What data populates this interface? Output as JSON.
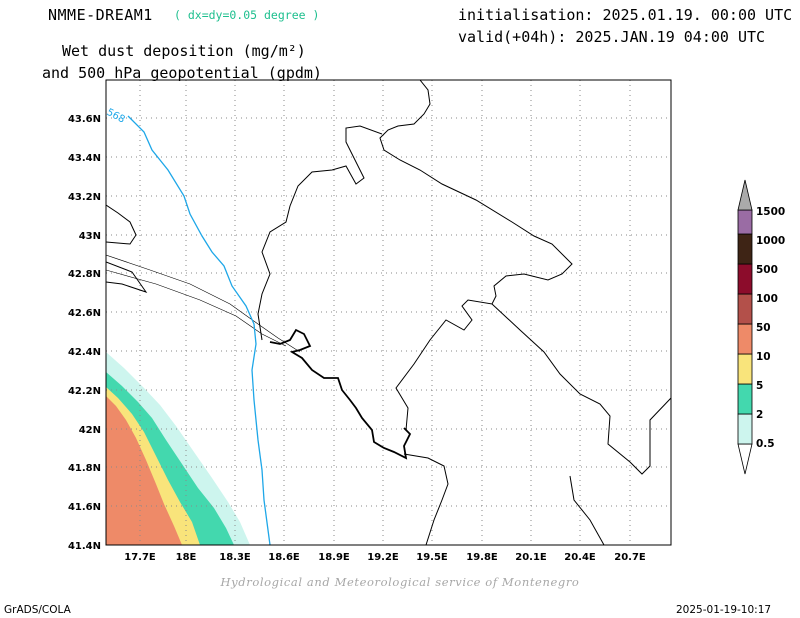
{
  "header": {
    "model": "NMME-DREAM1",
    "resolution": "( dx=dy=0.05 degree )",
    "title_line1": "Wet dust deposition (mg/m²)",
    "title_line2": "and 500 hPa geopotential (gpdm)",
    "initialisation": "initialisation: 2025.01.19. 00:00 UTC",
    "valid": "valid(+04h): 2025.JAN.19 04:00 UTC"
  },
  "map": {
    "lat_ticks": [
      "43.6N",
      "43.4N",
      "43.2N",
      "43N",
      "42.8N",
      "42.6N",
      "42.4N",
      "42.2N",
      "42N",
      "41.8N",
      "41.6N",
      "41.4N"
    ],
    "lon_ticks": [
      "17.7E",
      "18E",
      "18.3E",
      "18.6E",
      "18.9E",
      "19.2E",
      "19.5E",
      "19.8E",
      "20.1E",
      "20.4E",
      "20.7E"
    ],
    "contour_label": "568",
    "contour_color": "#1ea7e8",
    "grid": true
  },
  "colorbar": {
    "levels": [
      "0.5",
      "2",
      "5",
      "10",
      "50",
      "100",
      "500",
      "1000",
      "1500"
    ],
    "colors": [
      "#cdf5ee",
      "#43d8ae",
      "#f9e47b",
      "#ee8a68",
      "#b3504a",
      "#8c0c2b",
      "#3e2415",
      "#9a6ca4",
      "#aaaaaa"
    ]
  },
  "footer": {
    "credit": "Hydrological and Meteorological service of Montenegro",
    "left": "GrADS/COLA",
    "right": "2025-01-19-10:17"
  }
}
